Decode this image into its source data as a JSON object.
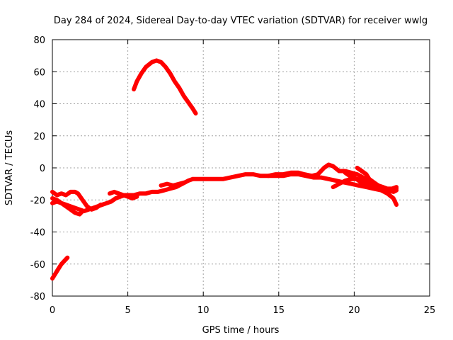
{
  "chart_data": {
    "type": "line",
    "title": "Day 284 of 2024, Sidereal Day-to-day VTEC variation (SDTVAR) for receiver wwlg",
    "xlabel": "GPS time / hours",
    "ylabel": "SDTVAR / TECUs",
    "xlim": [
      0,
      25
    ],
    "ylim": [
      -80,
      80
    ],
    "xticks": [
      0,
      5,
      10,
      15,
      20,
      25
    ],
    "yticks": [
      -80,
      -60,
      -40,
      -20,
      0,
      20,
      40,
      60,
      80
    ],
    "grid": true,
    "series_color": "#ff0000",
    "series": [
      {
        "name": "arc-early-low",
        "x": [
          0.0,
          0.2,
          0.4,
          0.6,
          0.8,
          1.0
        ],
        "y": [
          -69,
          -66,
          -63,
          -60,
          -58,
          -56
        ]
      },
      {
        "name": "arc-morning-high",
        "x": [
          5.4,
          5.6,
          5.9,
          6.2,
          6.6,
          6.9,
          7.2,
          7.5,
          7.8,
          8.1,
          8.4,
          8.7,
          9.0,
          9.3,
          9.5
        ],
        "y": [
          49,
          54,
          59,
          63,
          66,
          67,
          66,
          63,
          59,
          54,
          50,
          45,
          41,
          37,
          34
        ]
      },
      {
        "name": "arc-main-a",
        "x": [
          0.0,
          0.3,
          0.6,
          0.9,
          1.2,
          1.5,
          1.8,
          2.1,
          2.4,
          2.7,
          3.0,
          3.3,
          3.6,
          3.9,
          4.2,
          4.5,
          4.8,
          5.1,
          5.4,
          5.8,
          6.2,
          6.6,
          7.0,
          7.4,
          7.8,
          8.2,
          8.6,
          9.0,
          9.3
        ],
        "y": [
          -22,
          -21,
          -22,
          -23,
          -24,
          -25,
          -26,
          -27,
          -26,
          -25,
          -24,
          -23,
          -22,
          -21,
          -19,
          -18,
          -17,
          -17,
          -17,
          -16,
          -16,
          -15,
          -15,
          -14,
          -13,
          -12,
          -10,
          -8,
          -7
        ]
      },
      {
        "name": "arc-main-b",
        "x": [
          0.0,
          0.3,
          0.6,
          0.9,
          1.2,
          1.5,
          1.7,
          2.0,
          2.3,
          2.6,
          2.9,
          3.2
        ],
        "y": [
          -15,
          -17,
          -16,
          -17,
          -15,
          -15,
          -16,
          -20,
          -24,
          -26,
          -25,
          -23
        ]
      },
      {
        "name": "arc-main-c",
        "x": [
          0.0,
          0.3,
          0.6,
          0.9,
          1.2,
          1.5,
          1.8,
          2.0
        ],
        "y": [
          -19,
          -20,
          -22,
          -24,
          -26,
          -28,
          -29,
          -27
        ]
      },
      {
        "name": "arc-main-d",
        "x": [
          3.8,
          4.1,
          4.4,
          4.7,
          5.0,
          5.3,
          5.6
        ],
        "y": [
          -16,
          -15,
          -16,
          -17,
          -18,
          -19,
          -18
        ]
      },
      {
        "name": "arc-main-e",
        "x": [
          7.2,
          7.6,
          8.0,
          8.4,
          8.8
        ],
        "y": [
          -11,
          -10,
          -11,
          -10,
          -9
        ]
      },
      {
        "name": "arc-midday",
        "x": [
          9.3,
          9.8,
          10.3,
          10.8,
          11.3,
          11.8,
          12.3,
          12.8,
          13.3,
          13.8,
          14.3,
          14.8,
          15.3,
          15.8,
          16.3,
          16.8,
          17.3,
          17.8,
          18.3,
          18.8,
          19.3,
          19.8,
          20.3,
          20.8,
          21.3,
          21.8,
          22.3,
          22.8
        ],
        "y": [
          -7,
          -7,
          -7,
          -7,
          -7,
          -6,
          -5,
          -4,
          -4,
          -5,
          -5,
          -5,
          -5,
          -4,
          -4,
          -5,
          -6,
          -6,
          -7,
          -8,
          -9,
          -10,
          -11,
          -12,
          -13,
          -14,
          -14,
          -13
        ]
      },
      {
        "name": "arc-evening-a",
        "x": [
          14.3,
          14.8,
          15.3,
          15.8,
          16.3,
          16.7,
          17.2,
          17.6,
          18.0,
          18.3,
          18.6,
          19.0,
          19.4,
          19.8,
          20.2,
          20.6,
          21.0,
          21.4,
          21.8,
          22.2,
          22.6,
          22.8
        ],
        "y": [
          -5,
          -4,
          -4,
          -3,
          -3,
          -4,
          -5,
          -4,
          0,
          2,
          1,
          -2,
          -2,
          -3,
          -4,
          -6,
          -8,
          -10,
          -12,
          -14,
          -15,
          -14
        ]
      },
      {
        "name": "arc-evening-b",
        "x": [
          18.6,
          19.0,
          19.4,
          19.8,
          20.2,
          20.6,
          21.0,
          21.4,
          21.8,
          22.2,
          22.6,
          22.8
        ],
        "y": [
          -12,
          -10,
          -8,
          -7,
          -7,
          -8,
          -10,
          -12,
          -14,
          -16,
          -19,
          -23
        ]
      },
      {
        "name": "arc-evening-c",
        "x": [
          20.2,
          20.5,
          20.8,
          21.0,
          21.3,
          21.6,
          21.9,
          22.2,
          22.5,
          22.8
        ],
        "y": [
          0,
          -2,
          -4,
          -7,
          -9,
          -11,
          -12,
          -13,
          -13,
          -12
        ]
      },
      {
        "name": "arc-evening-d",
        "x": [
          19.4,
          19.7,
          20.0,
          20.3,
          20.6,
          20.9,
          21.2,
          21.5
        ],
        "y": [
          -3,
          -5,
          -6,
          -8,
          -10,
          -11,
          -12,
          -13
        ]
      }
    ]
  }
}
